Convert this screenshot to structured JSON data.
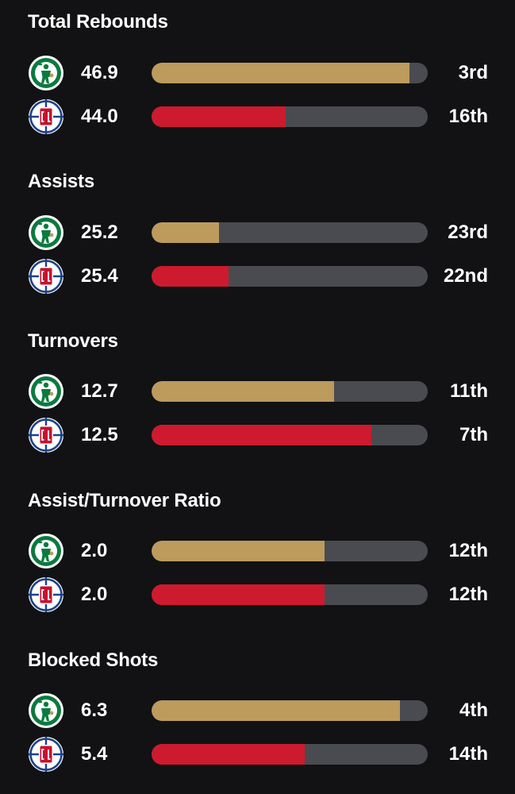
{
  "colors": {
    "background": "#121214",
    "track": "#494b51",
    "celtics_bar": "#bc9b5d",
    "clippers_bar": "#cd1a2e"
  },
  "teams": {
    "celtics": {
      "logo_icon": "celtics-logo-icon"
    },
    "clippers": {
      "logo_icon": "clippers-logo-icon"
    }
  },
  "sections": [
    {
      "title": "Total Rebounds",
      "rows": [
        {
          "team": "celtics",
          "value": "46.9",
          "rank": "3rd",
          "fill_fraction": 0.935
        },
        {
          "team": "clippers",
          "value": "44.0",
          "rank": "16th",
          "fill_fraction": 0.485
        }
      ]
    },
    {
      "title": "Assists",
      "rows": [
        {
          "team": "celtics",
          "value": "25.2",
          "rank": "23rd",
          "fill_fraction": 0.245
        },
        {
          "team": "clippers",
          "value": "25.4",
          "rank": "22nd",
          "fill_fraction": 0.28
        }
      ]
    },
    {
      "title": "Turnovers",
      "rows": [
        {
          "team": "celtics",
          "value": "12.7",
          "rank": "11th",
          "fill_fraction": 0.66
        },
        {
          "team": "clippers",
          "value": "12.5",
          "rank": "7th",
          "fill_fraction": 0.795
        }
      ]
    },
    {
      "title": "Assist/Turnover Ratio",
      "rows": [
        {
          "team": "celtics",
          "value": "2.0",
          "rank": "12th",
          "fill_fraction": 0.625
        },
        {
          "team": "clippers",
          "value": "2.0",
          "rank": "12th",
          "fill_fraction": 0.625
        }
      ]
    },
    {
      "title": "Blocked Shots",
      "rows": [
        {
          "team": "celtics",
          "value": "6.3",
          "rank": "4th",
          "fill_fraction": 0.9
        },
        {
          "team": "clippers",
          "value": "5.4",
          "rank": "14th",
          "fill_fraction": 0.555
        }
      ]
    }
  ]
}
